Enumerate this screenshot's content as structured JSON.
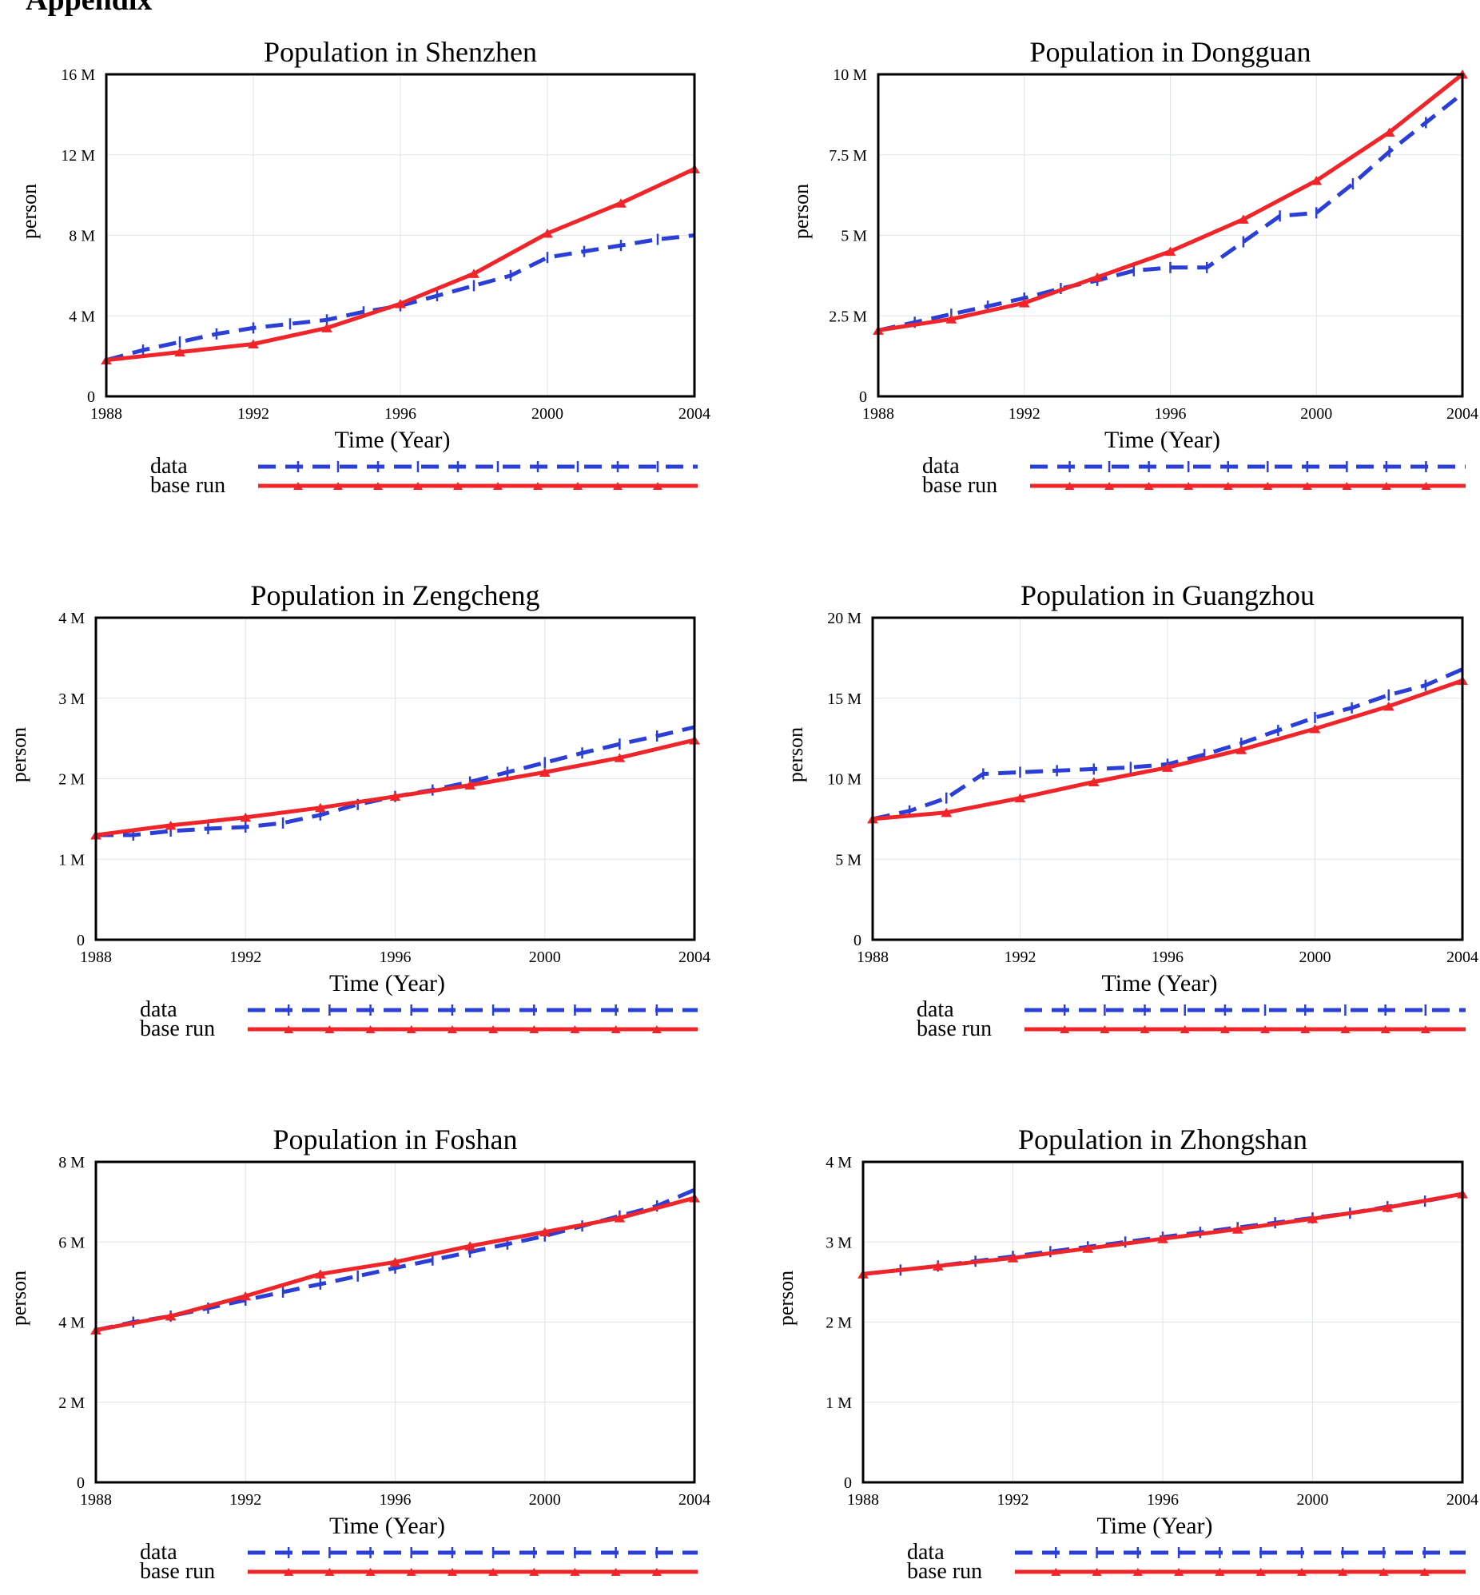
{
  "page": {
    "heading": "Appendix"
  },
  "colors": {
    "data": "#2b3fd6",
    "base_run": "#f0252a",
    "frame": "#000000",
    "grid": "#dfe3ea"
  },
  "chart_data": [
    {
      "type": "line",
      "title": "Population in Shenzhen",
      "xlabel": "Time (Year)",
      "ylabel": "person",
      "xlim": [
        1988,
        2004
      ],
      "ylim": [
        0,
        16000000
      ],
      "x_ticks": [
        "1988",
        "1992",
        "1996",
        "2000",
        "2004"
      ],
      "y_ticks": [
        "0",
        "4 M",
        "8 M",
        "12 M",
        "16 M"
      ],
      "grid": true,
      "legend": "below",
      "series": [
        {
          "name": "data",
          "style": "dashed",
          "x": [
            1988,
            1989,
            1990,
            1991,
            1992,
            1993,
            1994,
            1995,
            1996,
            1997,
            1998,
            1999,
            2000,
            2001,
            2002,
            2003,
            2004
          ],
          "values": [
            1800000,
            2300000,
            2700000,
            3100000,
            3400000,
            3600000,
            3800000,
            4200000,
            4500000,
            5000000,
            5500000,
            6000000,
            6900000,
            7200000,
            7500000,
            7800000,
            8000000
          ]
        },
        {
          "name": "base run",
          "style": "solid",
          "x": [
            1988,
            1990,
            1992,
            1994,
            1996,
            1998,
            2000,
            2002,
            2004
          ],
          "values": [
            1800000,
            2200000,
            2600000,
            3400000,
            4600000,
            6100000,
            8100000,
            9600000,
            11300000
          ]
        }
      ]
    },
    {
      "type": "line",
      "title": "Population in Dongguan",
      "xlabel": "Time (Year)",
      "ylabel": "person",
      "xlim": [
        1988,
        2004
      ],
      "ylim": [
        0,
        10000000
      ],
      "x_ticks": [
        "1988",
        "1992",
        "1996",
        "2000",
        "2004"
      ],
      "y_ticks": [
        "0",
        "2.5 M",
        "5 M",
        "7.5 M",
        "10 M"
      ],
      "grid": true,
      "legend": "below",
      "series": [
        {
          "name": "data",
          "style": "dashed",
          "x": [
            1988,
            1989,
            1990,
            1991,
            1992,
            1993,
            1994,
            1995,
            1996,
            1997,
            1998,
            1999,
            2000,
            2001,
            2002,
            2003,
            2004
          ],
          "values": [
            2050000,
            2300000,
            2550000,
            2800000,
            3050000,
            3350000,
            3600000,
            3900000,
            4000000,
            4000000,
            4800000,
            5600000,
            5700000,
            6600000,
            7600000,
            8500000,
            9400000
          ]
        },
        {
          "name": "base run",
          "style": "solid",
          "x": [
            1988,
            1990,
            1992,
            1994,
            1996,
            1998,
            2000,
            2002,
            2004
          ],
          "values": [
            2050000,
            2400000,
            2900000,
            3700000,
            4500000,
            5500000,
            6700000,
            8200000,
            10000000
          ]
        }
      ]
    },
    {
      "type": "line",
      "title": "Population in Zengcheng",
      "xlabel": "Time (Year)",
      "ylabel": "person",
      "xlim": [
        1988,
        2004
      ],
      "ylim": [
        0,
        4000000
      ],
      "x_ticks": [
        "1988",
        "1992",
        "1996",
        "2000",
        "2004"
      ],
      "y_ticks": [
        "0",
        "1 M",
        "2 M",
        "3 M",
        "4 M"
      ],
      "grid": true,
      "legend": "below",
      "series": [
        {
          "name": "data",
          "style": "dashed",
          "x": [
            1988,
            1989,
            1990,
            1991,
            1992,
            1993,
            1994,
            1995,
            1996,
            1997,
            1998,
            1999,
            2000,
            2001,
            2002,
            2003,
            2004
          ],
          "values": [
            1300000,
            1300000,
            1350000,
            1380000,
            1400000,
            1450000,
            1550000,
            1680000,
            1780000,
            1860000,
            1960000,
            2080000,
            2200000,
            2320000,
            2430000,
            2530000,
            2640000
          ]
        },
        {
          "name": "base run",
          "style": "solid",
          "x": [
            1988,
            1990,
            1992,
            1994,
            1996,
            1998,
            2000,
            2002,
            2004
          ],
          "values": [
            1300000,
            1420000,
            1520000,
            1640000,
            1780000,
            1920000,
            2080000,
            2260000,
            2480000
          ]
        }
      ]
    },
    {
      "type": "line",
      "title": "Population in Guangzhou",
      "xlabel": "Time (Year)",
      "ylabel": "person",
      "xlim": [
        1988,
        2004
      ],
      "ylim": [
        0,
        20000000
      ],
      "x_ticks": [
        "1988",
        "1992",
        "1996",
        "2000",
        "2004"
      ],
      "y_ticks": [
        "0",
        "5 M",
        "10 M",
        "15 M",
        "20 M"
      ],
      "grid": true,
      "legend": "below",
      "series": [
        {
          "name": "data",
          "style": "dashed",
          "x": [
            1988,
            1989,
            1990,
            1991,
            1992,
            1993,
            1994,
            1995,
            1996,
            1997,
            1998,
            1999,
            2000,
            2001,
            2002,
            2003,
            2004
          ],
          "values": [
            7500000,
            8000000,
            8800000,
            10300000,
            10400000,
            10500000,
            10600000,
            10700000,
            10900000,
            11500000,
            12200000,
            13000000,
            13800000,
            14400000,
            15200000,
            15800000,
            16800000
          ]
        },
        {
          "name": "base run",
          "style": "solid",
          "x": [
            1988,
            1990,
            1992,
            1994,
            1996,
            1998,
            2000,
            2002,
            2004
          ],
          "values": [
            7500000,
            7900000,
            8800000,
            9800000,
            10700000,
            11800000,
            13100000,
            14500000,
            16100000
          ]
        }
      ]
    },
    {
      "type": "line",
      "title": "Population in Foshan",
      "xlabel": "Time (Year)",
      "ylabel": "person",
      "xlim": [
        1988,
        2004
      ],
      "ylim": [
        0,
        8000000
      ],
      "x_ticks": [
        "1988",
        "1992",
        "1996",
        "2000",
        "2004"
      ],
      "y_ticks": [
        "0",
        "2 M",
        "4 M",
        "6 M",
        "8 M"
      ],
      "grid": true,
      "legend": "below",
      "series": [
        {
          "name": "data",
          "style": "dashed",
          "x": [
            1988,
            1989,
            1990,
            1991,
            1992,
            1993,
            1994,
            1995,
            1996,
            1997,
            1998,
            1999,
            2000,
            2001,
            2002,
            2003,
            2004
          ],
          "values": [
            3800000,
            4000000,
            4150000,
            4350000,
            4550000,
            4750000,
            4950000,
            5150000,
            5350000,
            5550000,
            5750000,
            5950000,
            6150000,
            6400000,
            6650000,
            6900000,
            7300000
          ]
        },
        {
          "name": "base run",
          "style": "solid",
          "x": [
            1988,
            1990,
            1992,
            1994,
            1996,
            1998,
            2000,
            2002,
            2004
          ],
          "values": [
            3800000,
            4150000,
            4650000,
            5200000,
            5500000,
            5900000,
            6250000,
            6600000,
            7100000
          ]
        }
      ]
    },
    {
      "type": "line",
      "title": "Population in Zhongshan",
      "xlabel": "Time (Year)",
      "ylabel": "person",
      "xlim": [
        1988,
        2004
      ],
      "ylim": [
        0,
        4000000
      ],
      "x_ticks": [
        "1988",
        "1992",
        "1996",
        "2000",
        "2004"
      ],
      "y_ticks": [
        "0",
        "1 M",
        "2 M",
        "3 M",
        "4 M"
      ],
      "grid": true,
      "legend": "below",
      "series": [
        {
          "name": "data",
          "style": "dashed",
          "x": [
            1988,
            1989,
            1990,
            1991,
            1992,
            1993,
            1994,
            1995,
            1996,
            1997,
            1998,
            1999,
            2000,
            2001,
            2002,
            2003,
            2004
          ],
          "values": [
            2600000,
            2650000,
            2700000,
            2760000,
            2820000,
            2880000,
            2940000,
            3000000,
            3060000,
            3120000,
            3180000,
            3240000,
            3300000,
            3360000,
            3440000,
            3510000,
            3600000
          ]
        },
        {
          "name": "base run",
          "style": "solid",
          "x": [
            1988,
            1990,
            1992,
            1994,
            1996,
            1998,
            2000,
            2002,
            2004
          ],
          "values": [
            2600000,
            2700000,
            2800000,
            2920000,
            3040000,
            3160000,
            3290000,
            3430000,
            3600000
          ]
        }
      ]
    }
  ]
}
